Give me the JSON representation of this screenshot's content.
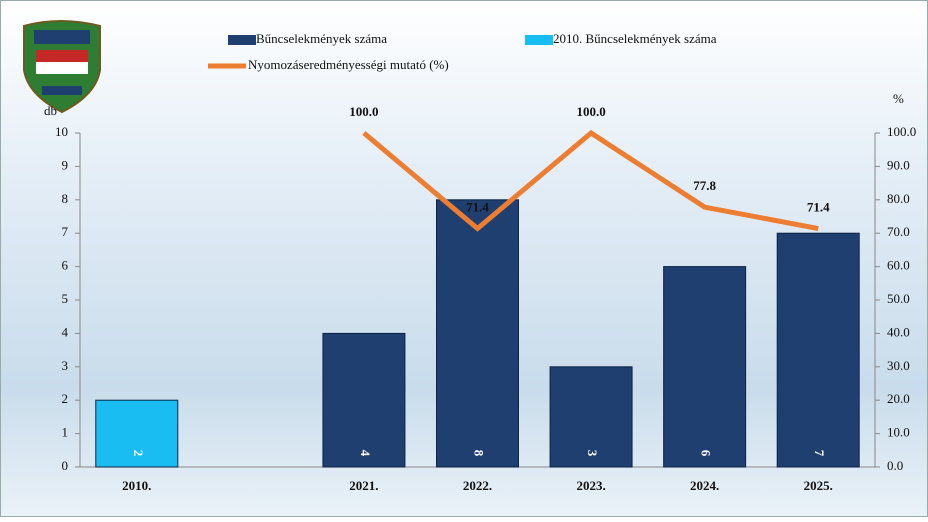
{
  "chart_data": {
    "type": "bar_line",
    "y_label": "db",
    "y2_label": "%",
    "categories": [
      "2010.",
      null,
      "2021.",
      "2022.",
      "2023.",
      "2024.",
      "2025."
    ],
    "series": [
      {
        "name": "Bűncselekmények száma",
        "type": "bar",
        "color": "#1f3f70",
        "values": [
          null,
          null,
          4,
          8,
          3,
          6,
          7
        ]
      },
      {
        "name": "2010. Bűncselekmények száma",
        "type": "bar",
        "color": "#19bdf2",
        "values": [
          2,
          null,
          null,
          null,
          null,
          null,
          null
        ]
      },
      {
        "name": "Nyomozáseredményességi mutató (%)",
        "type": "line",
        "axis": "y2",
        "color": "#ed7d31",
        "values": [
          null,
          null,
          100,
          71.4,
          100,
          77.8,
          71.4
        ],
        "value_labels": [
          null,
          null,
          "100.0",
          "71.4",
          "100.0",
          "77.8",
          "71.4"
        ]
      }
    ],
    "ylim": [
      0,
      10
    ],
    "yticks": [
      0,
      1,
      2,
      3,
      4,
      5,
      6,
      7,
      8,
      9,
      10
    ],
    "y2lim": [
      0,
      100
    ],
    "y2ticks": [
      {
        "value": 0,
        "label": "0.0"
      },
      {
        "value": 10,
        "label": "10.0"
      },
      {
        "value": 20,
        "label": "20.0"
      },
      {
        "value": 30,
        "label": "30.0"
      },
      {
        "value": 40,
        "label": "40.0"
      },
      {
        "value": 50,
        "label": "50.0"
      },
      {
        "value": 60,
        "label": "60.0"
      },
      {
        "value": 70,
        "label": "70.0"
      },
      {
        "value": 80,
        "label": "80.0"
      },
      {
        "value": 90,
        "label": "90.0"
      },
      {
        "value": 100,
        "label": "100.0"
      }
    ]
  }
}
